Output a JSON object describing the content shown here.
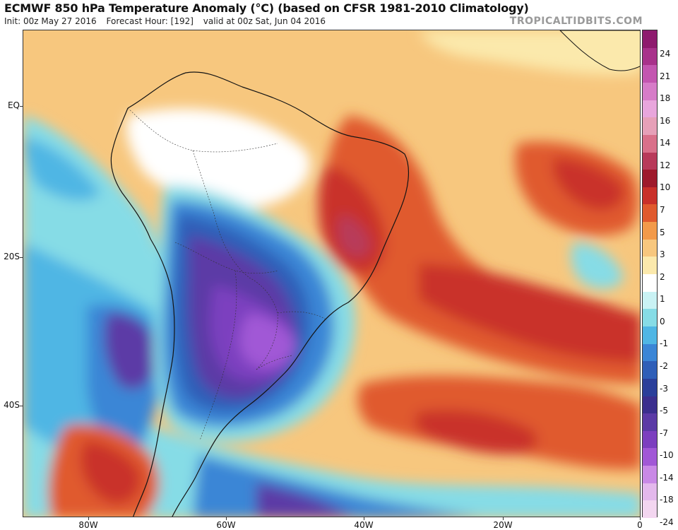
{
  "header": {
    "title": "ECMWF 850 hPa Temperature Anomaly (°C) (based on CFSR 1981-2010 Climatology)",
    "init": "Init: 00z May 27 2016",
    "forecast_hour": "Forecast Hour: [192]",
    "valid": "valid at 00z Sat, Jun 04 2016",
    "watermark": "TROPICALTIDBITS.COM"
  },
  "map": {
    "lat_labels": [
      "EQ",
      "20S",
      "40S"
    ],
    "lon_labels": [
      "80W",
      "60W",
      "40W",
      "20W",
      "0"
    ],
    "lon_range_deg": [
      -90,
      0
    ],
    "lat_range_deg": [
      10,
      -56
    ]
  },
  "colorbar": {
    "labels": [
      "24",
      "21",
      "18",
      "16",
      "14",
      "12",
      "10",
      "7",
      "5",
      "3",
      "2",
      "1",
      "0",
      "-1",
      "-2",
      "-3",
      "-5",
      "-7",
      "-10",
      "-14",
      "-18",
      "-24"
    ],
    "colors": [
      "#8e1b6e",
      "#a8328b",
      "#c356b0",
      "#d67cc8",
      "#e8a6dc",
      "#e6a0b8",
      "#d9708a",
      "#b83a5a",
      "#9e1a2c",
      "#c9302a",
      "#e05a2e",
      "#f29a4a",
      "#f7c77e",
      "#fbe9ac",
      "#ffffff",
      "#c9f2f4",
      "#86dce6",
      "#4fb6e4",
      "#3b86d6",
      "#2f5fb8",
      "#2a3f9a",
      "#3b2f8e",
      "#5b3aa6",
      "#7c3fbf",
      "#a158d6",
      "#c989e6",
      "#e3b8ec",
      "#f3d6f0"
    ]
  }
}
